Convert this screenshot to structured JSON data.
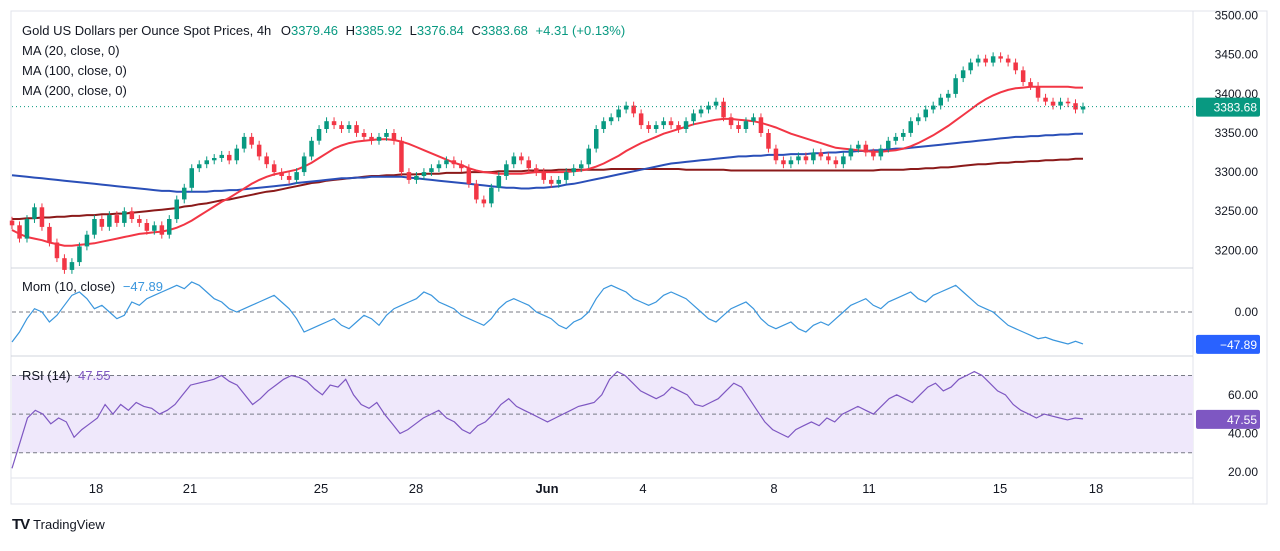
{
  "header": {
    "symbol_title": "Gold US Dollars per Ounce Spot Prices, 4h",
    "open_label": "O",
    "open": "3379.46",
    "high_label": "H",
    "high": "3385.92",
    "low_label": "L",
    "low": "3376.84",
    "close_label": "C",
    "close": "3383.68",
    "change": "+4.31 (+0.13%)"
  },
  "indicators": {
    "ma20": "MA (20, close, 0)",
    "ma100": "MA (100, close, 0)",
    "ma200": "MA (200, close, 0)",
    "mom_label": "Mom (10, close)",
    "mom_value": "−47.89",
    "rsi_label": "RSI (14)",
    "rsi_value": "47.55"
  },
  "brand": {
    "name": "TradingView",
    "logo_text": "TV"
  },
  "colors": {
    "up": "#089981",
    "down": "#f23645",
    "ma20": "#f23645",
    "ma100": "#2a4fb8",
    "ma200": "#8b1a1a",
    "mom": "#3a96dd",
    "rsi": "#7e57c2",
    "rsi_band": "#efe8fb",
    "price_badge": "#089981",
    "mom_badge": "#2962ff",
    "rsi_badge": "#7e57c2"
  },
  "chart_data": [
    {
      "type": "candlestick",
      "title": "Gold US Dollars per Ounce Spot Prices, 4h",
      "x_tick_labels": [
        "18",
        "21",
        "25",
        "28",
        "Jun",
        "4",
        "8",
        "11",
        "15",
        "18"
      ],
      "y_tick_labels": [
        "3500.00",
        "3450.00",
        "3400.00",
        "3350.00",
        "3300.00",
        "3250.00",
        "3200.00"
      ],
      "ylim": [
        3180,
        3502
      ],
      "last_price_label": "3383.68",
      "close_values": [
        3232,
        3215,
        3240,
        3255,
        3230,
        3210,
        3190,
        3175,
        3185,
        3205,
        3220,
        3240,
        3230,
        3245,
        3235,
        3250,
        3240,
        3235,
        3225,
        3232,
        3220,
        3240,
        3265,
        3280,
        3305,
        3310,
        3315,
        3318,
        3322,
        3315,
        3330,
        3345,
        3335,
        3320,
        3310,
        3300,
        3295,
        3290,
        3300,
        3320,
        3340,
        3355,
        3365,
        3360,
        3355,
        3360,
        3350,
        3345,
        3340,
        3345,
        3350,
        3340,
        3300,
        3290,
        3295,
        3300,
        3305,
        3310,
        3315,
        3310,
        3305,
        3285,
        3265,
        3260,
        3280,
        3295,
        3310,
        3320,
        3315,
        3305,
        3300,
        3290,
        3285,
        3290,
        3300,
        3305,
        3310,
        3330,
        3355,
        3365,
        3370,
        3380,
        3385,
        3375,
        3360,
        3355,
        3360,
        3365,
        3360,
        3355,
        3365,
        3375,
        3380,
        3385,
        3390,
        3370,
        3360,
        3355,
        3365,
        3370,
        3350,
        3330,
        3315,
        3310,
        3315,
        3320,
        3315,
        3325,
        3320,
        3315,
        3310,
        3320,
        3330,
        3335,
        3325,
        3320,
        3330,
        3340,
        3345,
        3350,
        3365,
        3370,
        3380,
        3385,
        3395,
        3400,
        3420,
        3430,
        3440,
        3445,
        3440,
        3448,
        3445,
        3440,
        3430,
        3415,
        3410,
        3395,
        3390,
        3385,
        3390,
        3388,
        3380,
        3383.68
      ],
      "series": [
        {
          "name": "MA (20, close, 0)",
          "values": [
            3226,
            3221,
            3217,
            3215,
            3213,
            3210,
            3208,
            3206,
            3206,
            3207,
            3208,
            3209,
            3211,
            3213,
            3215,
            3217,
            3219,
            3221,
            3222,
            3223,
            3224,
            3226,
            3229,
            3233,
            3238,
            3244,
            3250,
            3256,
            3262,
            3267,
            3273,
            3279,
            3285,
            3290,
            3294,
            3297,
            3299,
            3301,
            3303,
            3307,
            3312,
            3318,
            3324,
            3330,
            3334,
            3337,
            3339,
            3340,
            3341,
            3342,
            3342,
            3341,
            3339,
            3336,
            3332,
            3328,
            3324,
            3320,
            3316,
            3312,
            3309,
            3305,
            3302,
            3300,
            3299,
            3298,
            3298,
            3298,
            3298,
            3299,
            3300,
            3300,
            3300,
            3300,
            3300,
            3301,
            3302,
            3304,
            3307,
            3311,
            3316,
            3321,
            3327,
            3332,
            3337,
            3341,
            3345,
            3349,
            3352,
            3355,
            3358,
            3361,
            3363,
            3365,
            3367,
            3368,
            3368,
            3367,
            3366,
            3365,
            3363,
            3360,
            3357,
            3353,
            3349,
            3346,
            3343,
            3340,
            3337,
            3334,
            3331,
            3330,
            3329,
            3328,
            3327,
            3326,
            3326,
            3327,
            3328,
            3330,
            3333,
            3337,
            3342,
            3347,
            3353,
            3359,
            3366,
            3373,
            3380,
            3387,
            3393,
            3398,
            3402,
            3405,
            3407,
            3408,
            3409,
            3409,
            3409,
            3409,
            3409,
            3409,
            3408,
            3408
          ]
        },
        {
          "name": "MA (100, close, 0)",
          "values": [
            3296,
            3295,
            3294,
            3293,
            3292,
            3291,
            3290,
            3289,
            3288,
            3287,
            3286,
            3285,
            3284,
            3283,
            3282,
            3281,
            3280,
            3279,
            3278,
            3277,
            3276,
            3276,
            3275,
            3275,
            3275,
            3275,
            3275,
            3276,
            3276,
            3277,
            3277,
            3278,
            3279,
            3280,
            3281,
            3282,
            3283,
            3284,
            3286,
            3287,
            3288,
            3289,
            3290,
            3291,
            3292,
            3292,
            3293,
            3293,
            3294,
            3294,
            3294,
            3294,
            3294,
            3293,
            3292,
            3291,
            3290,
            3289,
            3288,
            3287,
            3286,
            3285,
            3284,
            3283,
            3282,
            3281,
            3280,
            3280,
            3279,
            3279,
            3280,
            3280,
            3281,
            3282,
            3284,
            3285,
            3287,
            3289,
            3291,
            3293,
            3295,
            3297,
            3299,
            3301,
            3303,
            3305,
            3307,
            3309,
            3311,
            3312,
            3313,
            3314,
            3315,
            3316,
            3317,
            3318,
            3319,
            3320,
            3320,
            3321,
            3321,
            3322,
            3322,
            3322,
            3323,
            3323,
            3323,
            3324,
            3324,
            3325,
            3325,
            3326,
            3326,
            3327,
            3327,
            3328,
            3328,
            3329,
            3330,
            3330,
            3331,
            3332,
            3333,
            3334,
            3335,
            3336,
            3337,
            3338,
            3339,
            3340,
            3341,
            3342,
            3343,
            3344,
            3345,
            3345,
            3346,
            3346,
            3347,
            3347,
            3348,
            3348,
            3349,
            3349
          ]
        },
        {
          "name": "MA (200, close, 0)",
          "values": [
            3240,
            3240,
            3241,
            3241,
            3242,
            3242,
            3243,
            3243,
            3244,
            3244,
            3245,
            3245,
            3246,
            3246,
            3247,
            3247,
            3248,
            3249,
            3250,
            3251,
            3252,
            3253,
            3254,
            3256,
            3257,
            3259,
            3260,
            3262,
            3264,
            3265,
            3267,
            3269,
            3271,
            3273,
            3275,
            3276,
            3278,
            3280,
            3282,
            3284,
            3286,
            3287,
            3289,
            3290,
            3291,
            3292,
            3293,
            3294,
            3295,
            3295,
            3296,
            3296,
            3297,
            3297,
            3297,
            3298,
            3298,
            3298,
            3299,
            3299,
            3299,
            3300,
            3300,
            3300,
            3300,
            3301,
            3301,
            3301,
            3301,
            3302,
            3302,
            3302,
            3302,
            3303,
            3303,
            3303,
            3303,
            3303,
            3303,
            3303,
            3304,
            3304,
            3304,
            3304,
            3304,
            3304,
            3304,
            3304,
            3304,
            3304,
            3303,
            3303,
            3303,
            3303,
            3303,
            3303,
            3302,
            3302,
            3302,
            3302,
            3302,
            3302,
            3302,
            3302,
            3302,
            3302,
            3302,
            3302,
            3302,
            3302,
            3302,
            3302,
            3302,
            3302,
            3302,
            3302,
            3303,
            3303,
            3303,
            3303,
            3304,
            3304,
            3305,
            3305,
            3306,
            3306,
            3307,
            3308,
            3309,
            3310,
            3310,
            3311,
            3312,
            3312,
            3313,
            3313,
            3314,
            3314,
            3315,
            3315,
            3316,
            3316,
            3317,
            3317
          ]
        }
      ]
    },
    {
      "type": "line",
      "title": "Mom (10, close)",
      "y_tick_labels": [
        "0.00"
      ],
      "ylim": [
        -60,
        60
      ],
      "last_value_label": "−47.89",
      "series": [
        {
          "name": "Mom (10, close)",
          "values": [
            -45,
            -30,
            -10,
            5,
            0,
            -15,
            -5,
            10,
            25,
            30,
            20,
            5,
            10,
            0,
            -10,
            -5,
            15,
            10,
            20,
            25,
            30,
            35,
            40,
            35,
            45,
            40,
            30,
            20,
            15,
            5,
            0,
            5,
            10,
            15,
            20,
            25,
            15,
            5,
            -10,
            -30,
            -25,
            -20,
            -15,
            -10,
            -20,
            -25,
            -15,
            -5,
            -10,
            -20,
            -5,
            5,
            10,
            15,
            20,
            30,
            25,
            15,
            10,
            5,
            -5,
            -10,
            -15,
            -20,
            -10,
            5,
            15,
            20,
            15,
            10,
            0,
            -5,
            -10,
            -20,
            -25,
            -15,
            -10,
            0,
            20,
            35,
            40,
            35,
            30,
            20,
            15,
            10,
            15,
            25,
            30,
            25,
            20,
            10,
            0,
            -10,
            -15,
            -5,
            5,
            10,
            15,
            5,
            -10,
            -20,
            -25,
            -20,
            -15,
            -25,
            -30,
            -20,
            -15,
            -20,
            -10,
            0,
            10,
            15,
            20,
            10,
            5,
            15,
            20,
            25,
            30,
            20,
            15,
            25,
            30,
            35,
            40,
            30,
            20,
            10,
            5,
            0,
            -10,
            -20,
            -25,
            -30,
            -35,
            -40,
            -38,
            -42,
            -45,
            -48,
            -44,
            -47.89
          ]
        }
      ]
    },
    {
      "type": "line",
      "title": "RSI (14)",
      "y_tick_labels": [
        "60.00",
        "40.00",
        "20.00"
      ],
      "ylim": [
        18,
        78
      ],
      "band": [
        30,
        70
      ],
      "midline": 50,
      "last_value_label": "47.55",
      "series": [
        {
          "name": "RSI (14)",
          "values": [
            22,
            35,
            48,
            52,
            50,
            45,
            48,
            46,
            38,
            42,
            45,
            48,
            55,
            50,
            55,
            52,
            56,
            54,
            53,
            50,
            52,
            55,
            60,
            65,
            66,
            67,
            68,
            70,
            67,
            65,
            60,
            55,
            58,
            62,
            65,
            68,
            70,
            69,
            67,
            63,
            60,
            65,
            64,
            68,
            60,
            55,
            53,
            56,
            50,
            45,
            40,
            42,
            45,
            48,
            50,
            52,
            48,
            46,
            42,
            40,
            44,
            46,
            50,
            55,
            58,
            54,
            52,
            50,
            48,
            46,
            48,
            50,
            52,
            54,
            55,
            56,
            60,
            68,
            72,
            70,
            66,
            62,
            60,
            58,
            60,
            64,
            62,
            60,
            55,
            54,
            56,
            58,
            62,
            66,
            64,
            58,
            52,
            46,
            42,
            40,
            38,
            42,
            44,
            46,
            44,
            48,
            46,
            50,
            52,
            54,
            52,
            50,
            54,
            58,
            60,
            58,
            56,
            60,
            64,
            66,
            62,
            64,
            68,
            70,
            72,
            70,
            66,
            62,
            60,
            55,
            52,
            50,
            48,
            50,
            49,
            48,
            47,
            48,
            47.55
          ]
        }
      ]
    }
  ]
}
